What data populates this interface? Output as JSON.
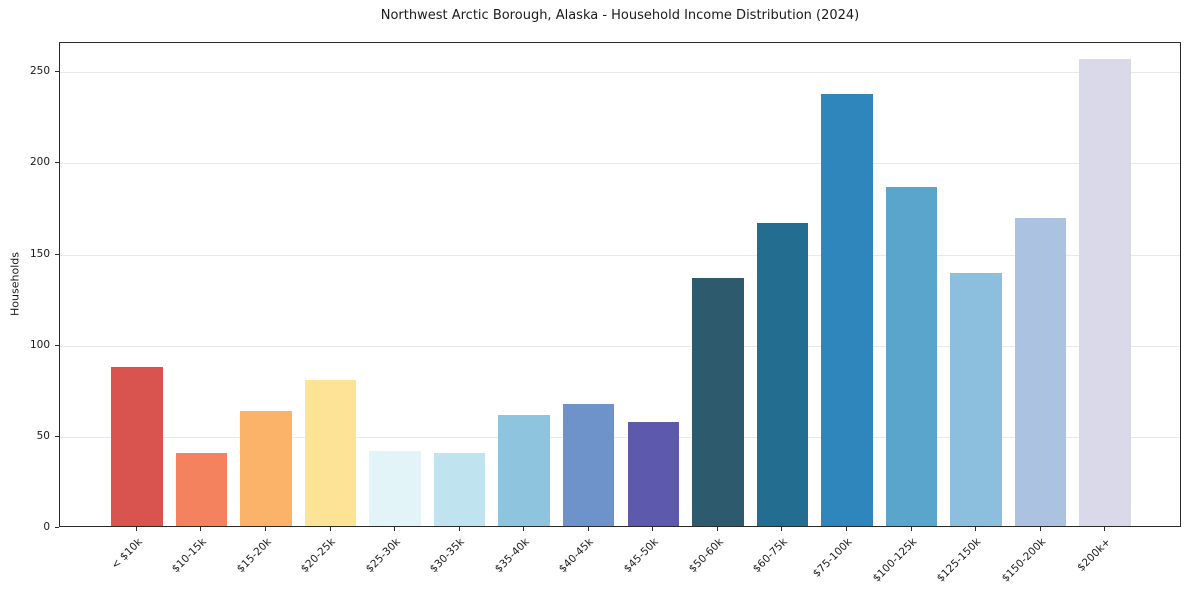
{
  "chart_data": {
    "type": "bar",
    "title": "Northwest Arctic Borough, Alaska - Household Income Distribution (2024)",
    "xlabel": "",
    "ylabel": "Households",
    "categories": [
      "< $10k",
      "$10-15k",
      "$15-20k",
      "$20-25k",
      "$25-30k",
      "$30-35k",
      "$35-40k",
      "$40-45k",
      "$45-50k",
      "$50-60k",
      "$60-75k",
      "$75-100k",
      "$100-125k",
      "$125-150k",
      "$150-200k",
      "$200k+"
    ],
    "values": [
      87,
      40,
      63,
      80,
      41,
      40,
      61,
      67,
      57,
      136,
      166,
      237,
      186,
      139,
      169,
      256
    ],
    "bar_colors": [
      "#d9534f",
      "#f4825e",
      "#fbb369",
      "#fde396",
      "#e3f4f8",
      "#bfe3ef",
      "#8ec4de",
      "#6e93ca",
      "#5d59ad",
      "#2e5a6d",
      "#236e90",
      "#2e86bc",
      "#5aa5cb",
      "#8cbedd",
      "#abc2e0",
      "#d9d9ea"
    ],
    "ylim": [
      0,
      266
    ],
    "yticks": [
      0,
      50,
      100,
      150,
      200,
      250
    ],
    "grid": "horizontal",
    "legend": "none",
    "background": "#ffffff"
  }
}
